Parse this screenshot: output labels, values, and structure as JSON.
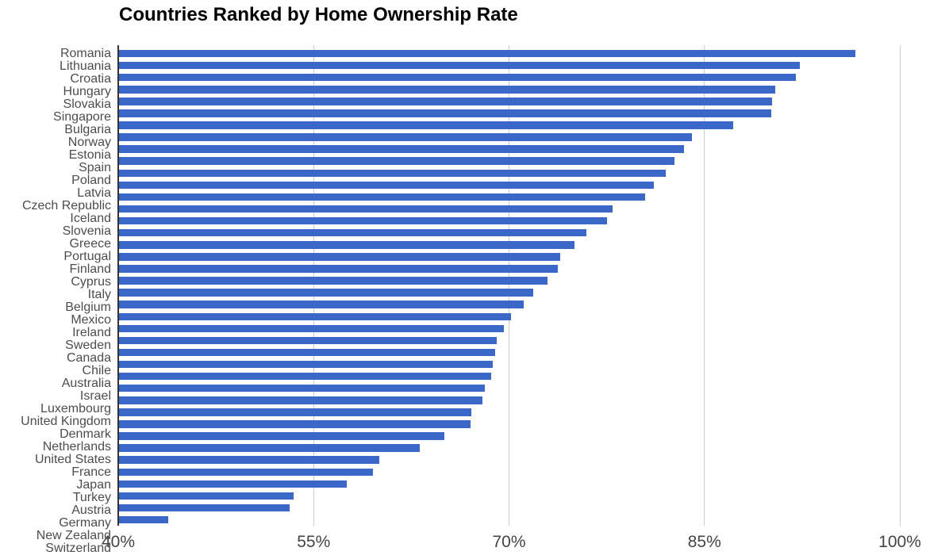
{
  "chart_data": {
    "type": "bar",
    "orientation": "horizontal",
    "title": "Countries Ranked by Home Ownership Rate",
    "categories": [
      "Romania",
      "Lithuania",
      "Croatia",
      "Hungary",
      "Slovakia",
      "Singapore",
      "Bulgaria",
      "Norway",
      "Estonia",
      "Spain",
      "Poland",
      "Latvia",
      "Czech Republic",
      "Iceland",
      "Slovenia",
      "Greece",
      "Portugal",
      "Finland",
      "Cyprus",
      "Italy",
      "Belgium",
      "Mexico",
      "Ireland",
      "Sweden",
      "Canada",
      "Chile",
      "Australia",
      "Israel",
      "Luxembourg",
      "United Kingdom",
      "Denmark",
      "Netherlands",
      "United States",
      "France",
      "Japan",
      "Turkey",
      "Austria",
      "Germany",
      "New Zealand",
      "Switzerland"
    ],
    "values": [
      96.6,
      92.3,
      92.0,
      90.4,
      90.2,
      90.1,
      87.2,
      84.0,
      83.4,
      82.7,
      82.0,
      81.1,
      80.4,
      77.9,
      77.5,
      75.9,
      75.0,
      73.9,
      73.7,
      72.9,
      71.8,
      71.1,
      70.1,
      69.6,
      69.0,
      68.9,
      68.7,
      68.6,
      68.1,
      67.9,
      67.1,
      67.0,
      65.0,
      63.1,
      60.0,
      59.5,
      57.5,
      53.4,
      53.1,
      43.8
    ],
    "value_unit": "%",
    "xlim": [
      40,
      100
    ],
    "x_ticks": [
      {
        "value": 40,
        "label": "40%"
      },
      {
        "value": 55,
        "label": "55%"
      },
      {
        "value": 70,
        "label": "70%"
      },
      {
        "value": 85,
        "label": "85%"
      },
      {
        "value": 100,
        "label": "100%"
      }
    ],
    "grid": "vertical-gridlines-on",
    "legend": "none",
    "colors": {
      "bar": "#3a67c8",
      "gridline": "#cccccc",
      "axis_line": "#333333",
      "category_label_text": "#4d4d4d",
      "tick_label_text": "#444444",
      "title_text": "#000000",
      "background": "#ffffff"
    }
  }
}
